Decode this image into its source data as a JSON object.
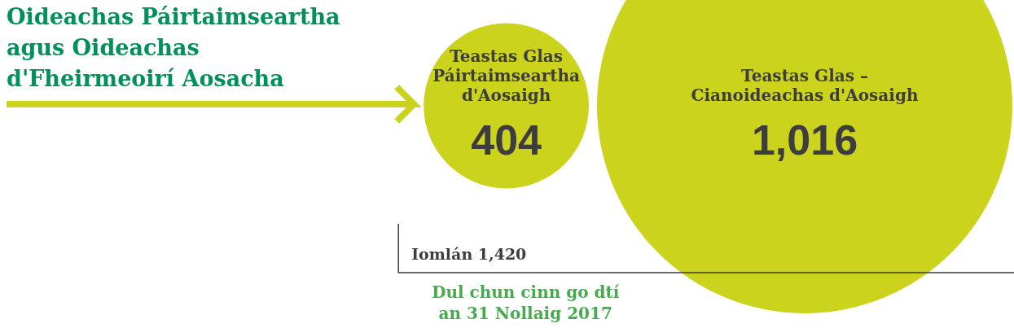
{
  "chart_data": {
    "type": "other",
    "title": "Oideachas Páirtaimseartha agus Oideachas d'Fheirmeoirí Aosacha",
    "categories": [
      "Teastas Glas Páirtaimseartha d'Aosaigh",
      "Teastas Glas – Cianoideachas d'Aosaigh"
    ],
    "values": [
      404,
      1016
    ],
    "value_labels": [
      "404",
      "1,016"
    ],
    "colors": [
      "#cbd31d",
      "#cbd31d"
    ],
    "annotations": [
      "Iomlán 1,420",
      "Dul chun cinn go dtí an 31 Nollaig 2017"
    ]
  }
}
